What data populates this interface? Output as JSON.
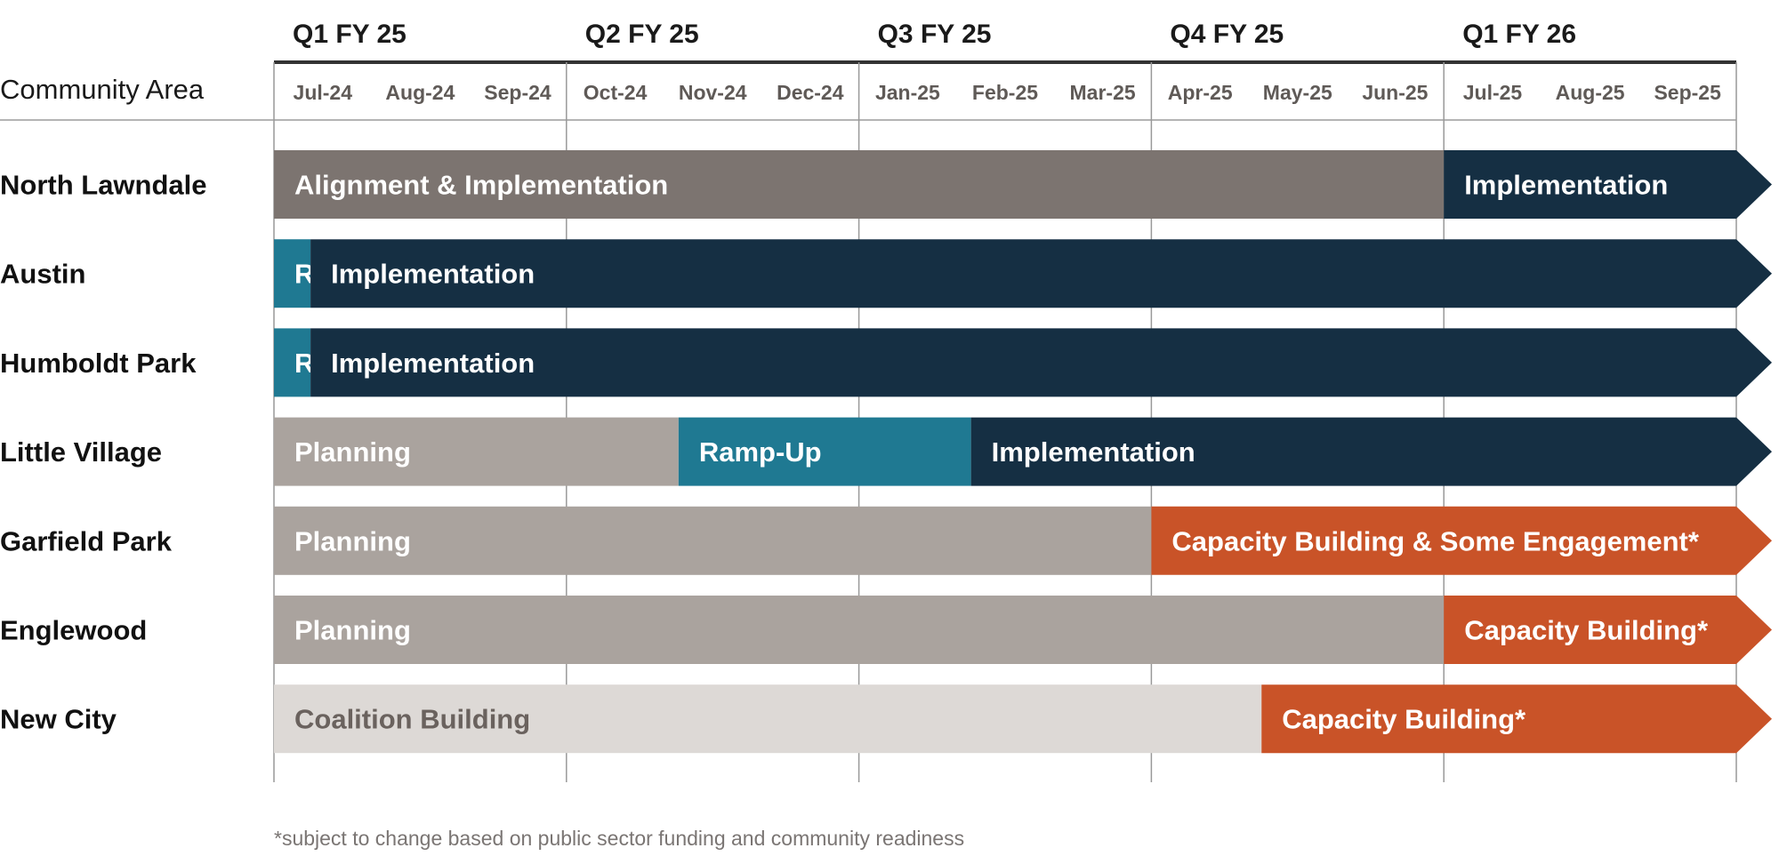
{
  "header": {
    "column_title": "Community Area",
    "quarters": [
      "Q1 FY 25",
      "Q2 FY 25",
      "Q3 FY 25",
      "Q4 FY 25",
      "Q1 FY 26"
    ],
    "months": [
      "Jul-24",
      "Aug-24",
      "Sep-24",
      "Oct-24",
      "Nov-24",
      "Dec-24",
      "Jan-25",
      "Feb-25",
      "Mar-25",
      "Apr-25",
      "May-25",
      "Jun-25",
      "Jul-25",
      "Aug-25",
      "Sep-25"
    ]
  },
  "colors": {
    "alignment": "#7c7470",
    "implementation": "#152f43",
    "ramp": "#1f7992",
    "planning": "#aaa39e",
    "capacity": "#c95328",
    "coalition": "#ddd9d6",
    "coalition_text": "#6a625e",
    "white_text": "#ffffff"
  },
  "rows": [
    {
      "name": "North Lawndale",
      "segments": [
        {
          "label": "Alignment & Implementation",
          "start": 0,
          "end": 12,
          "color": "alignment"
        },
        {
          "label": "Implementation",
          "start": 12,
          "end": 15,
          "color": "implementation",
          "arrow": true
        }
      ]
    },
    {
      "name": "Austin",
      "segments": [
        {
          "label": "Ramp",
          "start": 0,
          "end": 0.375,
          "color": "ramp"
        },
        {
          "label": "Implementation",
          "start": 0.375,
          "end": 15,
          "color": "implementation",
          "arrow": true
        }
      ]
    },
    {
      "name": "Humboldt Park",
      "segments": [
        {
          "label": "Ramp",
          "start": 0,
          "end": 0.375,
          "color": "ramp"
        },
        {
          "label": "Implementation",
          "start": 0.375,
          "end": 15,
          "color": "implementation",
          "arrow": true
        }
      ]
    },
    {
      "name": "Little Village",
      "segments": [
        {
          "label": "Planning",
          "start": 0,
          "end": 4.15,
          "color": "planning"
        },
        {
          "label": "Ramp-Up",
          "start": 4.15,
          "end": 7.15,
          "color": "ramp"
        },
        {
          "label": "Implementation",
          "start": 7.15,
          "end": 15,
          "color": "implementation",
          "arrow": true
        }
      ]
    },
    {
      "name": "Garfield Park",
      "segments": [
        {
          "label": "Planning",
          "start": 0,
          "end": 9,
          "color": "planning"
        },
        {
          "label": "Capacity Building & Some Engagement*",
          "start": 9,
          "end": 15,
          "color": "capacity",
          "arrow": true
        }
      ]
    },
    {
      "name": "Englewood",
      "segments": [
        {
          "label": "Planning",
          "start": 0,
          "end": 12,
          "color": "planning"
        },
        {
          "label": "Capacity Building*",
          "start": 12,
          "end": 15,
          "color": "capacity",
          "arrow": true
        }
      ]
    },
    {
      "name": "New City",
      "segments": [
        {
          "label": "Coalition Building",
          "start": 0,
          "end": 10.13,
          "color": "coalition",
          "text_color": "coalition_text"
        },
        {
          "label": "Capacity Building*",
          "start": 10.13,
          "end": 15,
          "color": "capacity",
          "arrow": true
        }
      ]
    }
  ],
  "footnote": "*subject to change based on public sector funding and community readiness"
}
